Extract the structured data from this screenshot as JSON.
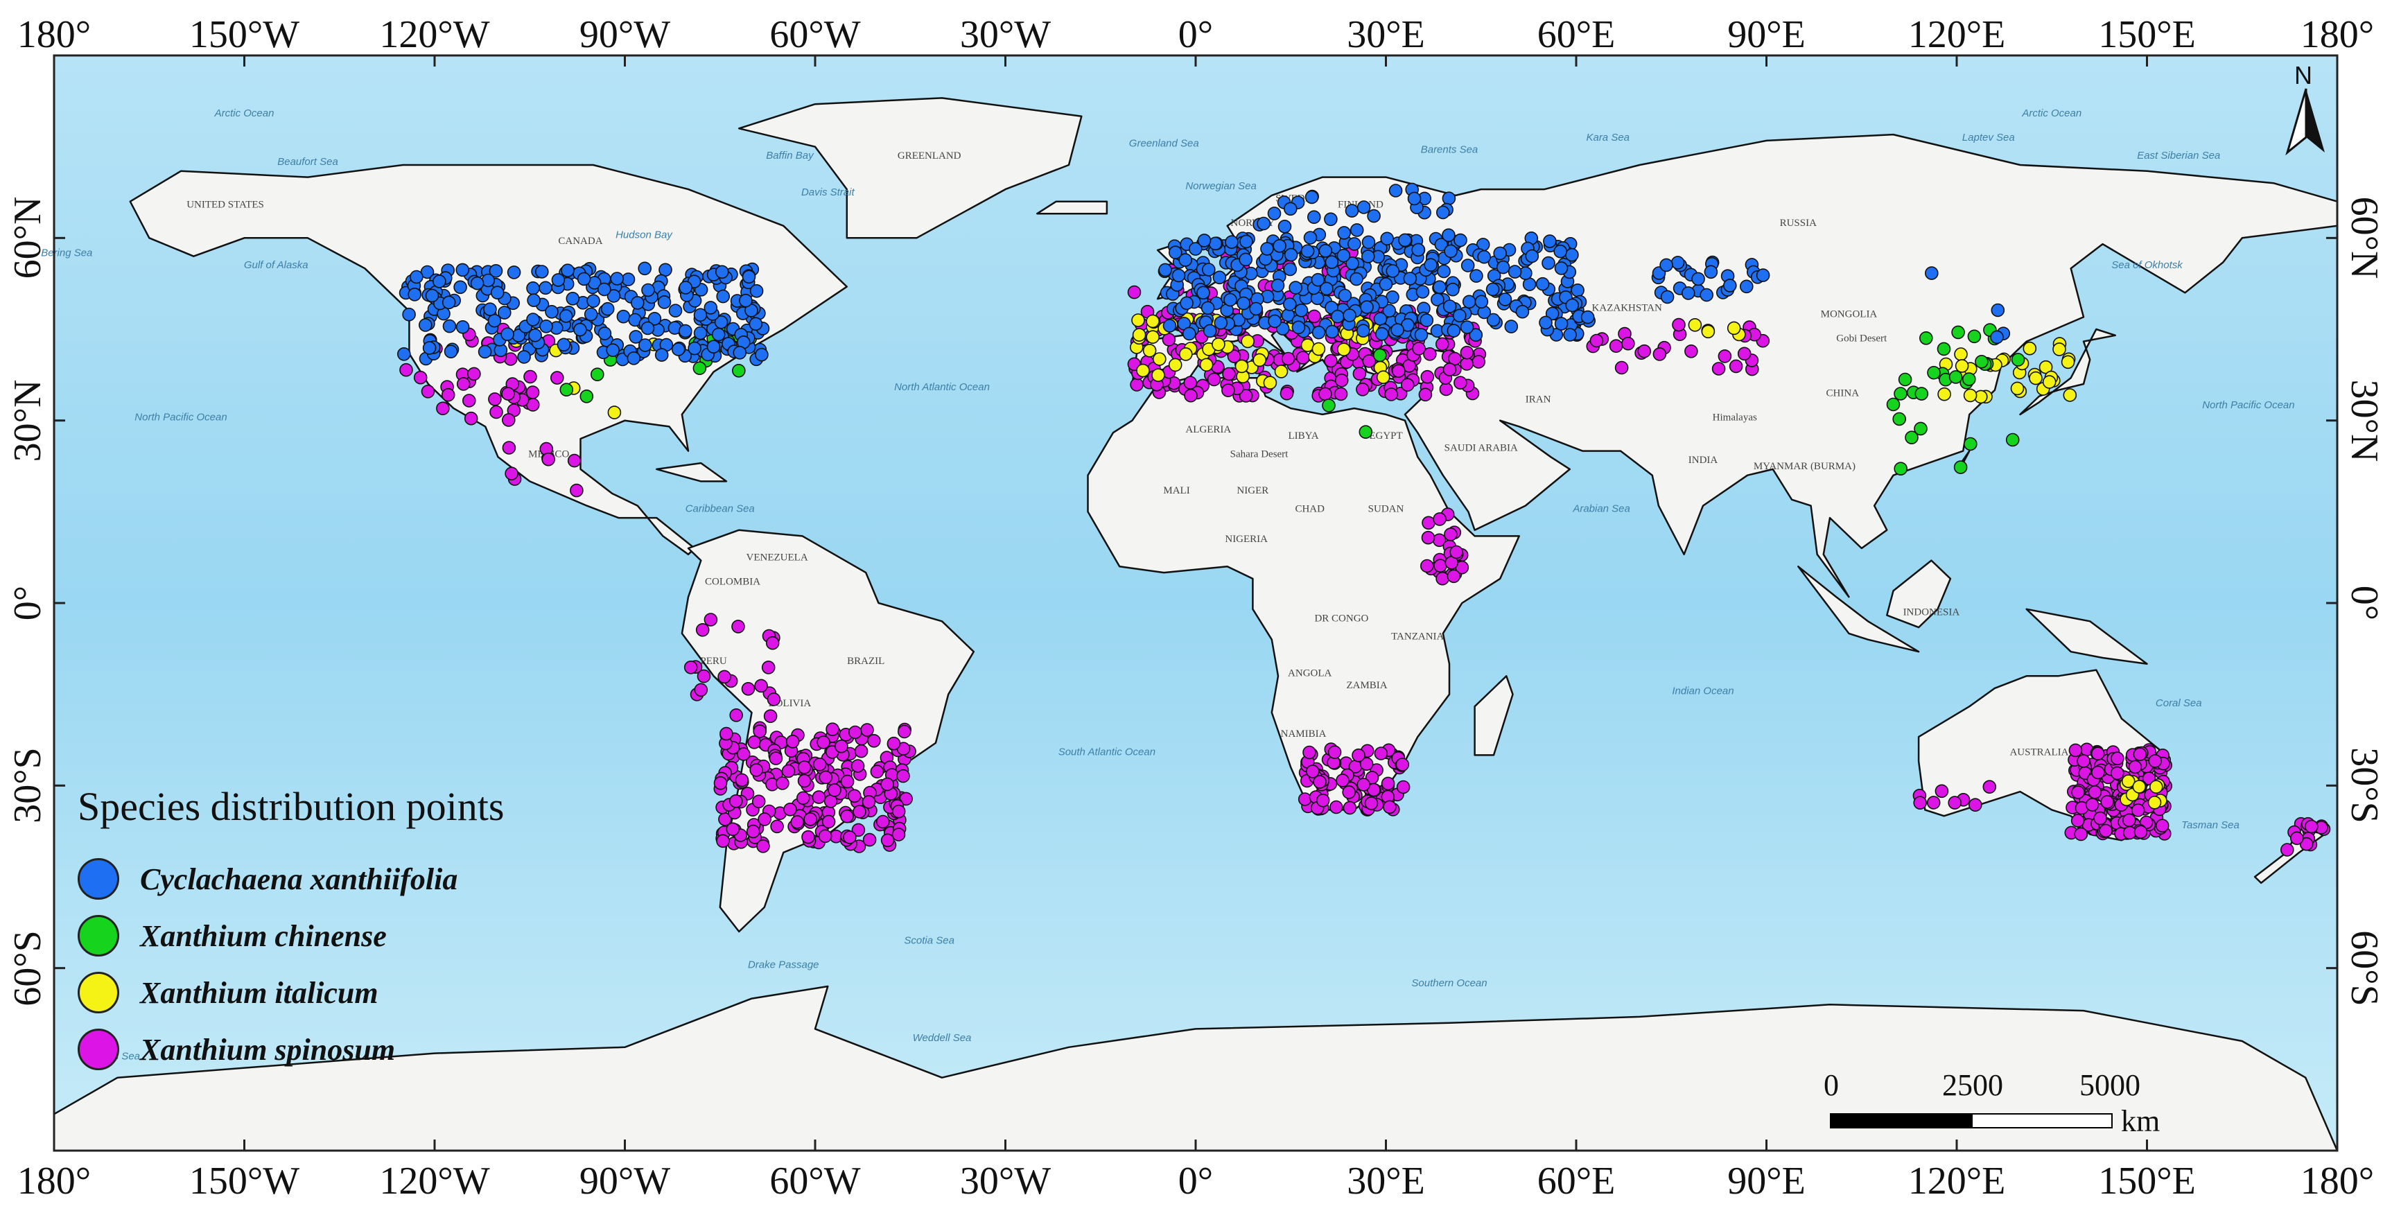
{
  "map": {
    "longitude_labels_top": [
      "180°",
      "150°W",
      "120°W",
      "90°W",
      "60°W",
      "30°W",
      "0°",
      "30°E",
      "60°E",
      "90°E",
      "120°E",
      "150°E",
      "180°"
    ],
    "longitude_labels_bottom": [
      "180°",
      "150°W",
      "120°W",
      "90°W",
      "60°W",
      "30°W",
      "0°",
      "30°E",
      "60°E",
      "90°E",
      "120°E",
      "150°E",
      "180°"
    ],
    "latitude_labels_left": [
      "60°N",
      "30°N",
      "0°",
      "30°S",
      "60°S"
    ],
    "latitude_labels_right": [
      "60°N",
      "30°N",
      "0°",
      "30°S",
      "60°S"
    ],
    "longitude_values": [
      -180,
      -150,
      -120,
      -90,
      -60,
      -30,
      0,
      30,
      60,
      90,
      120,
      150,
      180
    ],
    "latitude_values": [
      60,
      30,
      0,
      -30,
      -60
    ],
    "extent": {
      "lon": [
        -180,
        180
      ],
      "lat": [
        -90,
        90
      ]
    },
    "colors": {
      "ocean": "#a8dcf3",
      "ocean_deep": "#8fd0ee",
      "land": "#f4f5f2",
      "coast": "#111111"
    },
    "place_names": [
      {
        "text": "CANADA",
        "lon": -97,
        "lat": 59
      },
      {
        "text": "UNITED STATES",
        "lon": -153,
        "lat": 65
      },
      {
        "text": "GREENLAND",
        "lon": -42,
        "lat": 73
      },
      {
        "text": "RUSSIA",
        "lon": 95,
        "lat": 62
      },
      {
        "text": "KAZAKHSTAN",
        "lon": 68,
        "lat": 48
      },
      {
        "text": "MONGOLIA",
        "lon": 103,
        "lat": 47
      },
      {
        "text": "CHINA",
        "lon": 102,
        "lat": 34
      },
      {
        "text": "INDIA",
        "lon": 80,
        "lat": 23
      },
      {
        "text": "IRAN",
        "lon": 54,
        "lat": 33
      },
      {
        "text": "SAUDI ARABIA",
        "lon": 45,
        "lat": 25
      },
      {
        "text": "MYANMAR (BURMA)",
        "lon": 96,
        "lat": 22
      },
      {
        "text": "MEXICO",
        "lon": -102,
        "lat": 24
      },
      {
        "text": "VENEZUELA",
        "lon": -66,
        "lat": 7
      },
      {
        "text": "COLOMBIA",
        "lon": -73,
        "lat": 3
      },
      {
        "text": "PERU",
        "lon": -76,
        "lat": -10
      },
      {
        "text": "BOLIVIA",
        "lon": -64,
        "lat": -17
      },
      {
        "text": "BRAZIL",
        "lon": -52,
        "lat": -10
      },
      {
        "text": "ALGERIA",
        "lon": 2,
        "lat": 28
      },
      {
        "text": "LIBYA",
        "lon": 17,
        "lat": 27
      },
      {
        "text": "EGYPT",
        "lon": 30,
        "lat": 27
      },
      {
        "text": "MALI",
        "lon": -3,
        "lat": 18
      },
      {
        "text": "NIGER",
        "lon": 9,
        "lat": 18
      },
      {
        "text": "CHAD",
        "lon": 18,
        "lat": 15
      },
      {
        "text": "SUDAN",
        "lon": 30,
        "lat": 15
      },
      {
        "text": "NIGERIA",
        "lon": 8,
        "lat": 10
      },
      {
        "text": "DR CONGO",
        "lon": 23,
        "lat": -3
      },
      {
        "text": "TANZANIA",
        "lon": 35,
        "lat": -6
      },
      {
        "text": "ANGOLA",
        "lon": 18,
        "lat": -12
      },
      {
        "text": "ZAMBIA",
        "lon": 27,
        "lat": -14
      },
      {
        "text": "NAMIBIA",
        "lon": 17,
        "lat": -22
      },
      {
        "text": "FINLAND",
        "lon": 26,
        "lat": 65
      },
      {
        "text": "SWEDEN",
        "lon": 16,
        "lat": 66
      },
      {
        "text": "NORWAY",
        "lon": 9,
        "lat": 62
      },
      {
        "text": "AUSTRALIA",
        "lon": 133,
        "lat": -25
      },
      {
        "text": "INDONESIA",
        "lon": 116,
        "lat": -2
      },
      {
        "text": "Sahara Desert",
        "lon": 10,
        "lat": 24
      },
      {
        "text": "Gobi Desert",
        "lon": 105,
        "lat": 43
      },
      {
        "text": "Himalayas",
        "lon": 85,
        "lat": 30
      }
    ],
    "ocean_names": [
      {
        "text": "North Pacific Ocean",
        "lon": -160,
        "lat": 30
      },
      {
        "text": "North Atlantic Ocean",
        "lon": -40,
        "lat": 35
      },
      {
        "text": "South Atlantic Ocean",
        "lon": -14,
        "lat": -25
      },
      {
        "text": "Indian Ocean",
        "lon": 80,
        "lat": -15
      },
      {
        "text": "North Pacific Ocean",
        "lon": 166,
        "lat": 32
      },
      {
        "text": "Southern Ocean",
        "lon": 40,
        "lat": -63
      },
      {
        "text": "Arctic Ocean",
        "lon": -150,
        "lat": 80
      },
      {
        "text": "Arctic Ocean",
        "lon": 135,
        "lat": 80
      },
      {
        "text": "Hudson Bay",
        "lon": -87,
        "lat": 60
      },
      {
        "text": "Caribbean Sea",
        "lon": -75,
        "lat": 15
      },
      {
        "text": "Arabian Sea",
        "lon": 64,
        "lat": 15
      },
      {
        "text": "Sea of Okhotsk",
        "lon": 150,
        "lat": 55
      },
      {
        "text": "Coral Sea",
        "lon": 155,
        "lat": -17
      },
      {
        "text": "Tasman Sea",
        "lon": 160,
        "lat": -37
      },
      {
        "text": "Scotia Sea",
        "lon": -42,
        "lat": -56
      },
      {
        "text": "Drake Passage",
        "lon": -65,
        "lat": -60
      },
      {
        "text": "Weddell Sea",
        "lon": -40,
        "lat": -72
      },
      {
        "text": "Ross Sea",
        "lon": -170,
        "lat": -75
      },
      {
        "text": "Bering Sea",
        "lon": -178,
        "lat": 57
      },
      {
        "text": "Gulf of Alaska",
        "lon": -145,
        "lat": 55
      },
      {
        "text": "Beaufort Sea",
        "lon": -140,
        "lat": 72
      },
      {
        "text": "Baffin Bay",
        "lon": -64,
        "lat": 73
      },
      {
        "text": "Davis Strait",
        "lon": -58,
        "lat": 67
      },
      {
        "text": "Greenland Sea",
        "lon": -5,
        "lat": 75
      },
      {
        "text": "Norwegian Sea",
        "lon": 4,
        "lat": 68
      },
      {
        "text": "Barents Sea",
        "lon": 40,
        "lat": 74
      },
      {
        "text": "Kara Sea",
        "lon": 65,
        "lat": 76
      },
      {
        "text": "Laptev Sea",
        "lon": 125,
        "lat": 76
      },
      {
        "text": "East Siberian Sea",
        "lon": 155,
        "lat": 73
      }
    ]
  },
  "legend": {
    "title": "Species distribution points",
    "items": [
      {
        "label": "Cyclachaena xanthiifolia",
        "color": "#1e6ff2"
      },
      {
        "label": "Xanthium chinense",
        "color": "#16d41e"
      },
      {
        "label": "Xanthium italicum",
        "color": "#f5f216"
      },
      {
        "label": "Xanthium spinosum",
        "color": "#dc15e6"
      }
    ]
  },
  "scalebar": {
    "labels": [
      "0",
      "2500",
      "5000"
    ],
    "unit": "km"
  },
  "north_arrow": {
    "label": "N"
  },
  "point_clusters": [
    {
      "species": 0,
      "lon": [
        -125,
        -68
      ],
      "lat": [
        40,
        55
      ],
      "n": 260
    },
    {
      "species": 0,
      "lon": [
        -5,
        62
      ],
      "lat": [
        44,
        60
      ],
      "n": 380
    },
    {
      "species": 0,
      "lon": [
        10,
        40
      ],
      "lat": [
        60,
        68
      ],
      "n": 28
    },
    {
      "species": 0,
      "lon": [
        72,
        90
      ],
      "lat": [
        50,
        56
      ],
      "n": 26
    },
    {
      "species": 0,
      "lon": [
        112,
        128
      ],
      "lat": [
        42,
        56
      ],
      "n": 4
    },
    {
      "species": 1,
      "lon": [
        -80,
        -70
      ],
      "lat": [
        38,
        45
      ],
      "n": 12
    },
    {
      "species": 1,
      "lon": [
        -100,
        -85
      ],
      "lat": [
        30,
        40
      ],
      "n": 4
    },
    {
      "species": 1,
      "lon": [
        110,
        130
      ],
      "lat": [
        22,
        45
      ],
      "n": 28
    },
    {
      "species": 1,
      "lon": [
        20,
        32
      ],
      "lat": [
        28,
        42
      ],
      "n": 3
    },
    {
      "species": 2,
      "lon": [
        -10,
        30
      ],
      "lat": [
        36,
        48
      ],
      "n": 55
    },
    {
      "species": 2,
      "lon": [
        118,
        140
      ],
      "lat": [
        33,
        43
      ],
      "n": 30
    },
    {
      "species": 2,
      "lon": [
        146,
        153
      ],
      "lat": [
        -33,
        -27
      ],
      "n": 10
    },
    {
      "species": 2,
      "lon": [
        -110,
        -85
      ],
      "lat": [
        30,
        45
      ],
      "n": 6
    },
    {
      "species": 2,
      "lon": [
        78,
        86
      ],
      "lat": [
        44,
        46
      ],
      "n": 4
    },
    {
      "species": 3,
      "lon": [
        -125,
        -100
      ],
      "lat": [
        30,
        45
      ],
      "n": 40
    },
    {
      "species": 3,
      "lon": [
        -10,
        45
      ],
      "lat": [
        34,
        48
      ],
      "n": 240
    },
    {
      "species": 3,
      "lon": [
        -10,
        25
      ],
      "lat": [
        48,
        58
      ],
      "n": 30
    },
    {
      "species": 3,
      "lon": [
        60,
        90
      ],
      "lat": [
        38,
        46
      ],
      "n": 25
    },
    {
      "species": 3,
      "lon": [
        -75,
        -45
      ],
      "lat": [
        -40,
        -20
      ],
      "n": 220
    },
    {
      "species": 3,
      "lon": [
        -80,
        -66
      ],
      "lat": [
        -20,
        -2
      ],
      "n": 20
    },
    {
      "species": 3,
      "lon": [
        17,
        33
      ],
      "lat": [
        -34,
        -24
      ],
      "n": 90
    },
    {
      "species": 3,
      "lon": [
        36,
        42
      ],
      "lat": [
        4,
        15
      ],
      "n": 24
    },
    {
      "species": 3,
      "lon": [
        138,
        153
      ],
      "lat": [
        -38,
        -24
      ],
      "n": 200
    },
    {
      "species": 3,
      "lon": [
        114,
        126
      ],
      "lat": [
        -34,
        -30
      ],
      "n": 8
    },
    {
      "species": 3,
      "lon": [
        172,
        178
      ],
      "lat": [
        -41,
        -36
      ],
      "n": 14
    },
    {
      "species": 3,
      "lon": [
        -110,
        -95
      ],
      "lat": [
        18,
        28
      ],
      "n": 8
    }
  ]
}
